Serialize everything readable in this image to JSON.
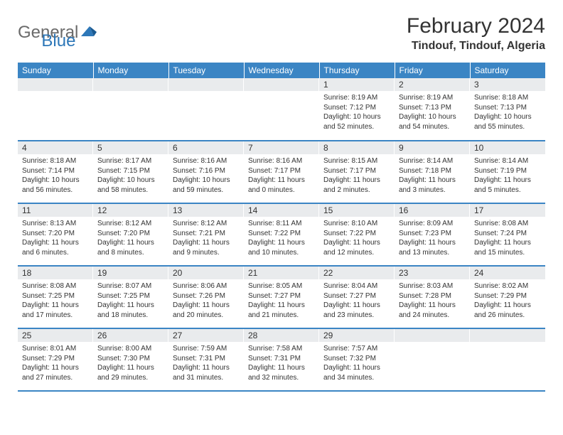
{
  "logo": {
    "general": "General",
    "blue": "Blue"
  },
  "title": "February 2024",
  "location": "Tindouf, Tindouf, Algeria",
  "colors": {
    "header_bg": "#3b85c4",
    "header_text": "#ffffff",
    "daynum_bg": "#e9ebed",
    "border": "#3b85c4",
    "text": "#333333",
    "logo_gray": "#6a6a6a",
    "logo_blue": "#2d77b8",
    "background": "#ffffff"
  },
  "weekdays": [
    "Sunday",
    "Monday",
    "Tuesday",
    "Wednesday",
    "Thursday",
    "Friday",
    "Saturday"
  ],
  "weeks": [
    [
      {
        "day": "",
        "sunrise": "",
        "sunset": "",
        "daylight": ""
      },
      {
        "day": "",
        "sunrise": "",
        "sunset": "",
        "daylight": ""
      },
      {
        "day": "",
        "sunrise": "",
        "sunset": "",
        "daylight": ""
      },
      {
        "day": "",
        "sunrise": "",
        "sunset": "",
        "daylight": ""
      },
      {
        "day": "1",
        "sunrise": "Sunrise: 8:19 AM",
        "sunset": "Sunset: 7:12 PM",
        "daylight": "Daylight: 10 hours and 52 minutes."
      },
      {
        "day": "2",
        "sunrise": "Sunrise: 8:19 AM",
        "sunset": "Sunset: 7:13 PM",
        "daylight": "Daylight: 10 hours and 54 minutes."
      },
      {
        "day": "3",
        "sunrise": "Sunrise: 8:18 AM",
        "sunset": "Sunset: 7:13 PM",
        "daylight": "Daylight: 10 hours and 55 minutes."
      }
    ],
    [
      {
        "day": "4",
        "sunrise": "Sunrise: 8:18 AM",
        "sunset": "Sunset: 7:14 PM",
        "daylight": "Daylight: 10 hours and 56 minutes."
      },
      {
        "day": "5",
        "sunrise": "Sunrise: 8:17 AM",
        "sunset": "Sunset: 7:15 PM",
        "daylight": "Daylight: 10 hours and 58 minutes."
      },
      {
        "day": "6",
        "sunrise": "Sunrise: 8:16 AM",
        "sunset": "Sunset: 7:16 PM",
        "daylight": "Daylight: 10 hours and 59 minutes."
      },
      {
        "day": "7",
        "sunrise": "Sunrise: 8:16 AM",
        "sunset": "Sunset: 7:17 PM",
        "daylight": "Daylight: 11 hours and 0 minutes."
      },
      {
        "day": "8",
        "sunrise": "Sunrise: 8:15 AM",
        "sunset": "Sunset: 7:17 PM",
        "daylight": "Daylight: 11 hours and 2 minutes."
      },
      {
        "day": "9",
        "sunrise": "Sunrise: 8:14 AM",
        "sunset": "Sunset: 7:18 PM",
        "daylight": "Daylight: 11 hours and 3 minutes."
      },
      {
        "day": "10",
        "sunrise": "Sunrise: 8:14 AM",
        "sunset": "Sunset: 7:19 PM",
        "daylight": "Daylight: 11 hours and 5 minutes."
      }
    ],
    [
      {
        "day": "11",
        "sunrise": "Sunrise: 8:13 AM",
        "sunset": "Sunset: 7:20 PM",
        "daylight": "Daylight: 11 hours and 6 minutes."
      },
      {
        "day": "12",
        "sunrise": "Sunrise: 8:12 AM",
        "sunset": "Sunset: 7:20 PM",
        "daylight": "Daylight: 11 hours and 8 minutes."
      },
      {
        "day": "13",
        "sunrise": "Sunrise: 8:12 AM",
        "sunset": "Sunset: 7:21 PM",
        "daylight": "Daylight: 11 hours and 9 minutes."
      },
      {
        "day": "14",
        "sunrise": "Sunrise: 8:11 AM",
        "sunset": "Sunset: 7:22 PM",
        "daylight": "Daylight: 11 hours and 10 minutes."
      },
      {
        "day": "15",
        "sunrise": "Sunrise: 8:10 AM",
        "sunset": "Sunset: 7:22 PM",
        "daylight": "Daylight: 11 hours and 12 minutes."
      },
      {
        "day": "16",
        "sunrise": "Sunrise: 8:09 AM",
        "sunset": "Sunset: 7:23 PM",
        "daylight": "Daylight: 11 hours and 13 minutes."
      },
      {
        "day": "17",
        "sunrise": "Sunrise: 8:08 AM",
        "sunset": "Sunset: 7:24 PM",
        "daylight": "Daylight: 11 hours and 15 minutes."
      }
    ],
    [
      {
        "day": "18",
        "sunrise": "Sunrise: 8:08 AM",
        "sunset": "Sunset: 7:25 PM",
        "daylight": "Daylight: 11 hours and 17 minutes."
      },
      {
        "day": "19",
        "sunrise": "Sunrise: 8:07 AM",
        "sunset": "Sunset: 7:25 PM",
        "daylight": "Daylight: 11 hours and 18 minutes."
      },
      {
        "day": "20",
        "sunrise": "Sunrise: 8:06 AM",
        "sunset": "Sunset: 7:26 PM",
        "daylight": "Daylight: 11 hours and 20 minutes."
      },
      {
        "day": "21",
        "sunrise": "Sunrise: 8:05 AM",
        "sunset": "Sunset: 7:27 PM",
        "daylight": "Daylight: 11 hours and 21 minutes."
      },
      {
        "day": "22",
        "sunrise": "Sunrise: 8:04 AM",
        "sunset": "Sunset: 7:27 PM",
        "daylight": "Daylight: 11 hours and 23 minutes."
      },
      {
        "day": "23",
        "sunrise": "Sunrise: 8:03 AM",
        "sunset": "Sunset: 7:28 PM",
        "daylight": "Daylight: 11 hours and 24 minutes."
      },
      {
        "day": "24",
        "sunrise": "Sunrise: 8:02 AM",
        "sunset": "Sunset: 7:29 PM",
        "daylight": "Daylight: 11 hours and 26 minutes."
      }
    ],
    [
      {
        "day": "25",
        "sunrise": "Sunrise: 8:01 AM",
        "sunset": "Sunset: 7:29 PM",
        "daylight": "Daylight: 11 hours and 27 minutes."
      },
      {
        "day": "26",
        "sunrise": "Sunrise: 8:00 AM",
        "sunset": "Sunset: 7:30 PM",
        "daylight": "Daylight: 11 hours and 29 minutes."
      },
      {
        "day": "27",
        "sunrise": "Sunrise: 7:59 AM",
        "sunset": "Sunset: 7:31 PM",
        "daylight": "Daylight: 11 hours and 31 minutes."
      },
      {
        "day": "28",
        "sunrise": "Sunrise: 7:58 AM",
        "sunset": "Sunset: 7:31 PM",
        "daylight": "Daylight: 11 hours and 32 minutes."
      },
      {
        "day": "29",
        "sunrise": "Sunrise: 7:57 AM",
        "sunset": "Sunset: 7:32 PM",
        "daylight": "Daylight: 11 hours and 34 minutes."
      },
      {
        "day": "",
        "sunrise": "",
        "sunset": "",
        "daylight": ""
      },
      {
        "day": "",
        "sunrise": "",
        "sunset": "",
        "daylight": ""
      }
    ]
  ]
}
